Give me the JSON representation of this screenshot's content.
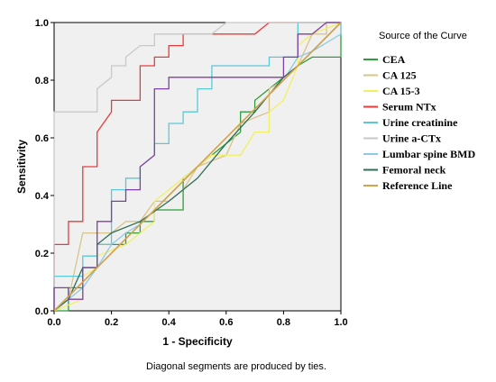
{
  "chart_data": {
    "type": "line",
    "xlabel": "1 - Specificity",
    "ylabel": "Sensitivity",
    "xlim": [
      0,
      1
    ],
    "ylim": [
      0,
      1
    ],
    "xticks": [
      "0.0",
      "0.2",
      "0.4",
      "0.6",
      "0.8",
      "1.0"
    ],
    "yticks": [
      "0.0",
      "0.2",
      "0.4",
      "0.6",
      "0.8",
      "1.0"
    ],
    "grid": false,
    "legend_title": "Source of the Curve",
    "legend_position": "right",
    "footnote": "Diagonal segments are produced by ties.",
    "series": [
      {
        "name": "CEA",
        "color": "#2e9e3c",
        "points": [
          [
            0,
            0
          ],
          [
            0.05,
            0
          ],
          [
            0.05,
            0.08
          ],
          [
            0.1,
            0.08
          ],
          [
            0.1,
            0.15
          ],
          [
            0.15,
            0.15
          ],
          [
            0.15,
            0.23
          ],
          [
            0.25,
            0.23
          ],
          [
            0.25,
            0.27
          ],
          [
            0.3,
            0.27
          ],
          [
            0.3,
            0.31
          ],
          [
            0.35,
            0.31
          ],
          [
            0.35,
            0.35
          ],
          [
            0.45,
            0.35
          ],
          [
            0.45,
            0.46
          ],
          [
            0.5,
            0.5
          ],
          [
            0.6,
            0.58
          ],
          [
            0.65,
            0.62
          ],
          [
            0.65,
            0.69
          ],
          [
            0.7,
            0.69
          ],
          [
            0.7,
            0.73
          ],
          [
            0.75,
            0.77
          ],
          [
            0.85,
            0.85
          ],
          [
            0.9,
            0.88
          ],
          [
            1,
            0.88
          ],
          [
            1,
            1
          ]
        ]
      },
      {
        "name": "CA 125",
        "color": "#d8c48a",
        "points": [
          [
            0,
            0
          ],
          [
            0.05,
            0.04
          ],
          [
            0.1,
            0.27
          ],
          [
            0.15,
            0.27
          ],
          [
            0.2,
            0.27
          ],
          [
            0.25,
            0.31
          ],
          [
            0.3,
            0.31
          ],
          [
            0.35,
            0.38
          ],
          [
            0.4,
            0.38
          ],
          [
            0.45,
            0.42
          ],
          [
            0.5,
            0.5
          ],
          [
            0.6,
            0.54
          ],
          [
            0.65,
            0.65
          ],
          [
            0.75,
            0.69
          ],
          [
            0.75,
            0.77
          ],
          [
            0.8,
            0.8
          ],
          [
            0.85,
            0.85
          ],
          [
            0.9,
            0.96
          ],
          [
            0.95,
            0.96
          ],
          [
            0.95,
            1
          ],
          [
            1,
            1
          ]
        ]
      },
      {
        "name": "CA 15-3",
        "color": "#f0f060",
        "points": [
          [
            0,
            0
          ],
          [
            0.1,
            0.04
          ],
          [
            0.1,
            0.12
          ],
          [
            0.15,
            0.15
          ],
          [
            0.15,
            0.19
          ],
          [
            0.25,
            0.23
          ],
          [
            0.3,
            0.27
          ],
          [
            0.35,
            0.31
          ],
          [
            0.35,
            0.38
          ],
          [
            0.4,
            0.42
          ],
          [
            0.45,
            0.46
          ],
          [
            0.5,
            0.5
          ],
          [
            0.55,
            0.54
          ],
          [
            0.65,
            0.54
          ],
          [
            0.7,
            0.62
          ],
          [
            0.75,
            0.62
          ],
          [
            0.75,
            0.69
          ],
          [
            0.8,
            0.73
          ],
          [
            0.85,
            0.85
          ],
          [
            0.85,
            0.92
          ],
          [
            0.9,
            0.96
          ],
          [
            1,
            1
          ]
        ]
      },
      {
        "name": "Serum NTx",
        "color": "#e83c3c",
        "points": [
          [
            0,
            0
          ],
          [
            0,
            0.23
          ],
          [
            0.05,
            0.23
          ],
          [
            0.05,
            0.31
          ],
          [
            0.1,
            0.31
          ],
          [
            0.1,
            0.5
          ],
          [
            0.15,
            0.5
          ],
          [
            0.15,
            0.62
          ],
          [
            0.2,
            0.69
          ],
          [
            0.2,
            0.73
          ],
          [
            0.3,
            0.73
          ],
          [
            0.3,
            0.85
          ],
          [
            0.35,
            0.85
          ],
          [
            0.35,
            0.88
          ],
          [
            0.4,
            0.88
          ],
          [
            0.4,
            0.92
          ],
          [
            0.45,
            0.92
          ],
          [
            0.45,
            0.96
          ],
          [
            0.6,
            0.96
          ],
          [
            0.7,
            0.96
          ],
          [
            0.75,
            1
          ],
          [
            1,
            1
          ]
        ]
      },
      {
        "name": "Urine creatinine",
        "color": "#5cc8d6",
        "points": [
          [
            0,
            0
          ],
          [
            0,
            0.12
          ],
          [
            0.1,
            0.12
          ],
          [
            0.1,
            0.19
          ],
          [
            0.15,
            0.19
          ],
          [
            0.15,
            0.23
          ],
          [
            0.2,
            0.23
          ],
          [
            0.2,
            0.42
          ],
          [
            0.25,
            0.42
          ],
          [
            0.25,
            0.46
          ],
          [
            0.3,
            0.46
          ],
          [
            0.3,
            0.5
          ],
          [
            0.35,
            0.54
          ],
          [
            0.35,
            0.58
          ],
          [
            0.4,
            0.58
          ],
          [
            0.4,
            0.65
          ],
          [
            0.45,
            0.65
          ],
          [
            0.45,
            0.69
          ],
          [
            0.5,
            0.69
          ],
          [
            0.5,
            0.77
          ],
          [
            0.55,
            0.77
          ],
          [
            0.55,
            0.85
          ],
          [
            0.75,
            0.85
          ],
          [
            0.75,
            0.88
          ],
          [
            0.85,
            0.88
          ],
          [
            0.85,
            1
          ],
          [
            1,
            1
          ]
        ]
      },
      {
        "name": "Urine a-CTx",
        "color": "#c8c8c8",
        "points": [
          [
            0,
            0
          ],
          [
            0,
            0.69
          ],
          [
            0.15,
            0.69
          ],
          [
            0.15,
            0.77
          ],
          [
            0.2,
            0.81
          ],
          [
            0.2,
            0.85
          ],
          [
            0.25,
            0.85
          ],
          [
            0.25,
            0.88
          ],
          [
            0.3,
            0.92
          ],
          [
            0.35,
            0.92
          ],
          [
            0.35,
            0.96
          ],
          [
            0.55,
            0.96
          ],
          [
            0.6,
            1
          ],
          [
            1,
            1
          ]
        ]
      },
      {
        "name": "Lumbar spine BMD",
        "color": "#8fc9e8",
        "points": [
          [
            0,
            0
          ],
          [
            0.05,
            0.04
          ],
          [
            0.1,
            0.08
          ],
          [
            0.15,
            0.15
          ],
          [
            0.2,
            0.23
          ],
          [
            0.25,
            0.27
          ],
          [
            0.3,
            0.3
          ],
          [
            0.4,
            0.4
          ],
          [
            0.5,
            0.5
          ],
          [
            0.6,
            0.6
          ],
          [
            0.7,
            0.7
          ],
          [
            0.8,
            0.8
          ],
          [
            0.85,
            0.88
          ],
          [
            0.9,
            0.9
          ],
          [
            1,
            0.96
          ],
          [
            1,
            1
          ]
        ]
      },
      {
        "name": "Femoral neck",
        "color": "#2f6e5a",
        "points": [
          [
            0,
            0
          ],
          [
            0.05,
            0.04
          ],
          [
            0.1,
            0.15
          ],
          [
            0.15,
            0.15
          ],
          [
            0.15,
            0.23
          ],
          [
            0.2,
            0.27
          ],
          [
            0.3,
            0.31
          ],
          [
            0.4,
            0.38
          ],
          [
            0.5,
            0.46
          ],
          [
            0.6,
            0.58
          ],
          [
            0.7,
            0.69
          ],
          [
            0.8,
            0.81
          ],
          [
            0.85,
            0.85
          ],
          [
            0.9,
            0.9
          ],
          [
            1,
            1
          ]
        ]
      },
      {
        "name": "CA 15-3 (purple)",
        "legend": false,
        "color": "#8040a0",
        "points": [
          [
            0,
            0
          ],
          [
            0,
            0.08
          ],
          [
            0.05,
            0.08
          ],
          [
            0.05,
            0.04
          ],
          [
            0.1,
            0.04
          ],
          [
            0.1,
            0.15
          ],
          [
            0.15,
            0.15
          ],
          [
            0.15,
            0.31
          ],
          [
            0.2,
            0.31
          ],
          [
            0.2,
            0.38
          ],
          [
            0.25,
            0.38
          ],
          [
            0.25,
            0.42
          ],
          [
            0.3,
            0.42
          ],
          [
            0.3,
            0.5
          ],
          [
            0.35,
            0.54
          ],
          [
            0.35,
            0.77
          ],
          [
            0.4,
            0.77
          ],
          [
            0.4,
            0.81
          ],
          [
            0.7,
            0.81
          ],
          [
            0.75,
            0.81
          ],
          [
            0.8,
            0.81
          ],
          [
            0.8,
            0.88
          ],
          [
            0.85,
            0.88
          ],
          [
            0.85,
            0.96
          ],
          [
            0.9,
            0.96
          ],
          [
            0.95,
            1
          ],
          [
            1,
            1
          ]
        ]
      },
      {
        "name": "Reference Line",
        "color": "#d4a24a",
        "points": [
          [
            0,
            0
          ],
          [
            1,
            1
          ]
        ]
      }
    ]
  }
}
